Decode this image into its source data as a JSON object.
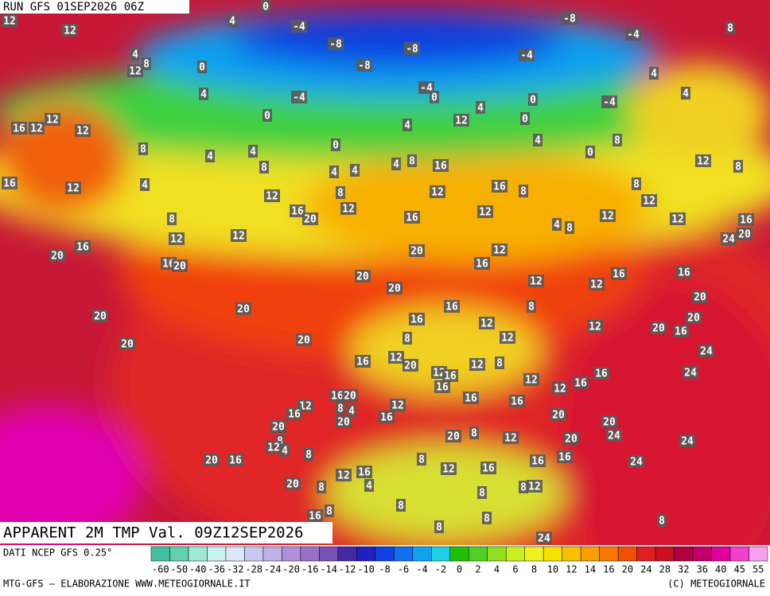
{
  "header": {
    "run": "RUN GFS 01SEP2026 06Z"
  },
  "map": {
    "labels": [
      12,
      4,
      0,
      -4,
      -8,
      -4,
      8,
      12,
      4,
      8,
      12,
      0,
      -8,
      -8,
      -8,
      -4,
      4,
      -4,
      -4,
      0,
      0,
      -4,
      4,
      4,
      12,
      12,
      16,
      12,
      0,
      4,
      12,
      4,
      0,
      8,
      4,
      4,
      0,
      4,
      0,
      8,
      16,
      12,
      4,
      8,
      4,
      4,
      4,
      8,
      16,
      12,
      8,
      12,
      8,
      12,
      16,
      8,
      8,
      12,
      8,
      16,
      20,
      12,
      16,
      12,
      4,
      8,
      12,
      12,
      16,
      12,
      12,
      16,
      20,
      24,
      20,
      16,
      20,
      20,
      12,
      16,
      20,
      12,
      12,
      16,
      16,
      20,
      20,
      16,
      8,
      20,
      20,
      16,
      12,
      12,
      20,
      16,
      20,
      20,
      20,
      8,
      12,
      24,
      16,
      12,
      20,
      12,
      16,
      12,
      8,
      12,
      12,
      16,
      16,
      24,
      16,
      16,
      16,
      16,
      20,
      8,
      4,
      12,
      16,
      16,
      12,
      20,
      20,
      20,
      24,
      20,
      20,
      8,
      12,
      20,
      24,
      8,
      12,
      4,
      8,
      20,
      16,
      8,
      16,
      16,
      24,
      12,
      16,
      4,
      12,
      16,
      20,
      8,
      8,
      8,
      12,
      16,
      8,
      8,
      8,
      8,
      8,
      24,
      8
    ]
  },
  "footer": {
    "title": "APPARENT 2M TMP Val. 09Z12SEP2026",
    "source": "DATI NCEP GFS 0.25°",
    "credit": "MTG-GFS — ELABORAZIONE WWW.METEOGIORNALE.IT",
    "copyright": "(C) METEOGIORNALE"
  },
  "legend": {
    "ticks": [
      -60,
      -50,
      -40,
      -36,
      -32,
      -28,
      -24,
      -20,
      -16,
      -14,
      -12,
      -10,
      -8,
      -6,
      -4,
      -2,
      0,
      2,
      4,
      6,
      8,
      10,
      12,
      14,
      16,
      20,
      24,
      28,
      32,
      36,
      40,
      45,
      55
    ],
    "colors": [
      "#40c0a0",
      "#60d0b0",
      "#a0e8d8",
      "#c8f0ec",
      "#d8e8f8",
      "#c8c8f0",
      "#c0b0e8",
      "#b090d8",
      "#9870c8",
      "#7850b8",
      "#4828a0",
      "#2020c0",
      "#1040e0",
      "#1070f0",
      "#10a0f0",
      "#20d0e8",
      "#20c000",
      "#50d020",
      "#90e020",
      "#c8f020",
      "#f0f020",
      "#f8e000",
      "#f8c000",
      "#f8a000",
      "#f87800",
      "#f05000",
      "#e02020",
      "#c81020",
      "#b00040",
      "#c00070",
      "#e000a0",
      "#f040d0",
      "#f8a0f0"
    ]
  }
}
